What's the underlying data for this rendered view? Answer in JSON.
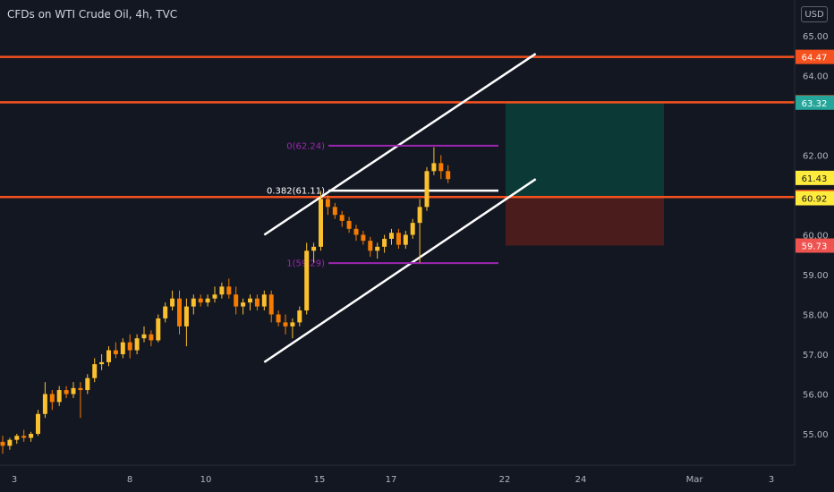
{
  "header": {
    "title": "CFDs on WTI Crude Oil, 4h, TVC",
    "currency": "USD"
  },
  "chart_data": {
    "type": "candlestick",
    "ylim": [
      54.6,
      65.5
    ],
    "y_ticks": [
      "65.00",
      "64.00",
      "62.00",
      "60.00",
      "59.00",
      "58.00",
      "57.00",
      "56.00",
      "55.00"
    ],
    "x_ticks": [
      "3",
      "8",
      "10",
      "15",
      "17",
      "22",
      "24",
      "Mar",
      "3"
    ],
    "up_color": "#fbc02d",
    "down_color": "#f57c00",
    "candles": [
      [
        54.8,
        54.95,
        54.5,
        54.7
      ],
      [
        54.7,
        54.9,
        54.6,
        54.85
      ],
      [
        54.85,
        55.0,
        54.75,
        54.95
      ],
      [
        54.95,
        55.1,
        54.8,
        54.9
      ],
      [
        54.9,
        55.05,
        54.8,
        55.0
      ],
      [
        55.0,
        55.6,
        54.95,
        55.5
      ],
      [
        55.5,
        56.3,
        55.4,
        56.0
      ],
      [
        56.0,
        56.1,
        55.6,
        55.8
      ],
      [
        55.8,
        56.2,
        55.7,
        56.1
      ],
      [
        56.1,
        56.2,
        55.9,
        56.0
      ],
      [
        56.0,
        56.3,
        55.9,
        56.15
      ],
      [
        56.15,
        56.3,
        55.4,
        56.1
      ],
      [
        56.1,
        56.5,
        56.0,
        56.4
      ],
      [
        56.4,
        56.9,
        56.3,
        56.75
      ],
      [
        56.75,
        57.0,
        56.6,
        56.8
      ],
      [
        56.8,
        57.2,
        56.7,
        57.1
      ],
      [
        57.1,
        57.3,
        56.9,
        57.0
      ],
      [
        57.0,
        57.4,
        56.9,
        57.3
      ],
      [
        57.3,
        57.5,
        56.9,
        57.1
      ],
      [
        57.1,
        57.5,
        57.0,
        57.4
      ],
      [
        57.4,
        57.7,
        57.3,
        57.5
      ],
      [
        57.5,
        57.6,
        57.2,
        57.35
      ],
      [
        57.35,
        58.0,
        57.3,
        57.9
      ],
      [
        57.9,
        58.3,
        57.8,
        58.2
      ],
      [
        58.2,
        58.6,
        58.1,
        58.4
      ],
      [
        58.4,
        58.6,
        57.5,
        57.7
      ],
      [
        57.7,
        58.4,
        57.2,
        58.2
      ],
      [
        58.2,
        58.5,
        58.0,
        58.4
      ],
      [
        58.4,
        58.5,
        58.2,
        58.3
      ],
      [
        58.3,
        58.5,
        58.2,
        58.4
      ],
      [
        58.4,
        58.7,
        58.3,
        58.5
      ],
      [
        58.5,
        58.8,
        58.4,
        58.7
      ],
      [
        58.7,
        58.9,
        58.4,
        58.5
      ],
      [
        58.5,
        58.7,
        58.0,
        58.2
      ],
      [
        58.2,
        58.4,
        58.0,
        58.3
      ],
      [
        58.3,
        58.5,
        58.1,
        58.4
      ],
      [
        58.4,
        58.5,
        58.1,
        58.2
      ],
      [
        58.2,
        58.6,
        58.1,
        58.5
      ],
      [
        58.5,
        58.6,
        57.8,
        58.0
      ],
      [
        58.0,
        58.1,
        57.7,
        57.8
      ],
      [
        57.8,
        58.0,
        57.5,
        57.7
      ],
      [
        57.7,
        57.9,
        57.4,
        57.8
      ],
      [
        57.8,
        58.2,
        57.7,
        58.1
      ],
      [
        58.1,
        59.8,
        58.0,
        59.6
      ],
      [
        59.6,
        59.8,
        59.3,
        59.7
      ],
      [
        59.7,
        61.1,
        59.6,
        60.9
      ],
      [
        60.9,
        61.0,
        60.5,
        60.7
      ],
      [
        60.7,
        60.8,
        60.4,
        60.5
      ],
      [
        60.5,
        60.6,
        60.2,
        60.35
      ],
      [
        60.35,
        60.45,
        60.05,
        60.15
      ],
      [
        60.15,
        60.25,
        59.85,
        60.0
      ],
      [
        60.0,
        60.1,
        59.75,
        59.85
      ],
      [
        59.85,
        59.95,
        59.45,
        59.6
      ],
      [
        59.6,
        59.8,
        59.4,
        59.7
      ],
      [
        59.7,
        60.0,
        59.55,
        59.9
      ],
      [
        59.9,
        60.15,
        59.75,
        60.05
      ],
      [
        60.05,
        60.15,
        59.65,
        59.75
      ],
      [
        59.75,
        60.1,
        59.65,
        60.0
      ],
      [
        60.0,
        60.4,
        59.9,
        60.3
      ],
      [
        60.3,
        60.9,
        59.3,
        60.7
      ],
      [
        60.7,
        61.7,
        60.6,
        61.6
      ],
      [
        61.6,
        62.2,
        61.5,
        61.8
      ],
      [
        61.8,
        62.0,
        61.4,
        61.6
      ],
      [
        61.6,
        61.75,
        61.3,
        61.4
      ]
    ],
    "horizontal_lines": [
      {
        "price": 64.47,
        "label": "64.47",
        "color": "#f4511e"
      },
      {
        "price": 63.33,
        "label": "63.33",
        "color": "#f4511e"
      },
      {
        "price": 60.95,
        "label": "60.95",
        "color": "#f4511e"
      }
    ],
    "price_labels": [
      {
        "price": 64.47,
        "label": "64.47",
        "bg": "#f4511e",
        "fg": "#ffffff"
      },
      {
        "price": 63.33,
        "label": "63.33",
        "bg": "#f4511e",
        "fg": "#ffffff"
      },
      {
        "price": 63.32,
        "label": "63.32",
        "bg": "#26a69a",
        "fg": "#ffffff"
      },
      {
        "price": 61.43,
        "label": "61.43",
        "bg": "#ffeb3b",
        "fg": "#131722"
      },
      {
        "price": 60.95,
        "label": "60.95",
        "bg": "#f4511e",
        "fg": "#ffffff"
      },
      {
        "price": 60.92,
        "label": "60.92",
        "bg": "#ffeb3b",
        "fg": "#131722"
      },
      {
        "price": 59.73,
        "label": "59.73",
        "bg": "#ef5350",
        "fg": "#ffffff"
      }
    ],
    "fib_levels": [
      {
        "ratio_label": "0(62.24)",
        "price": 62.24,
        "color": "#9c27b0",
        "text_color": "#9c27b0"
      },
      {
        "ratio_label": "0.382(61.11)",
        "price": 61.11,
        "color": "#ffffff",
        "text_color": "#ffffff"
      },
      {
        "ratio_label": "1(59.29)",
        "price": 59.29,
        "color": "#9c27b0",
        "text_color": "#9c27b0"
      }
    ],
    "position": {
      "entry": 60.95,
      "target": 63.33,
      "stop": 59.73,
      "profit_color": "#0b3a36",
      "loss_color": "#4a1d1c"
    },
    "channel_color": "#ffffff"
  }
}
